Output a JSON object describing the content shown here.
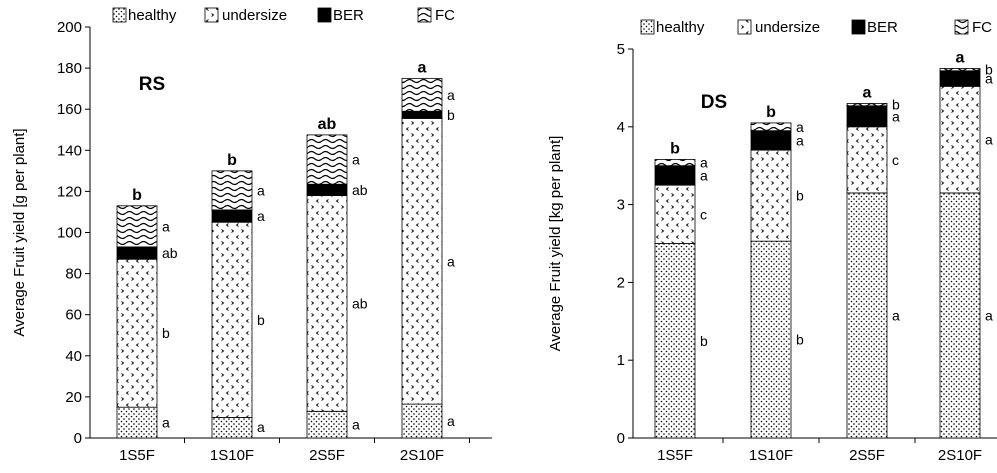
{
  "chart_data": [
    {
      "type": "bar",
      "stacked": true,
      "title": "RS",
      "ylabel": "Average Fruit yield [g per plant]",
      "xlabel": "",
      "ylim": [
        0,
        200
      ],
      "yticks": [
        "0",
        "20",
        "40",
        "60",
        "80",
        "100",
        "120",
        "140",
        "160",
        "180",
        "200"
      ],
      "categories": [
        "1S5F",
        "1S10F",
        "2S5F",
        "2S10F"
      ],
      "legend_position": "top",
      "series": [
        {
          "name": "healthy",
          "pattern": "dots",
          "values": [
            15,
            10,
            13,
            16.5
          ],
          "letters": [
            "a",
            "a",
            "a",
            "a"
          ]
        },
        {
          "name": "undersize",
          "pattern": "arrows",
          "values": [
            72,
            95,
            105,
            139
          ],
          "letters": [
            "b",
            "b",
            "ab",
            "a"
          ]
        },
        {
          "name": "BER",
          "pattern": "solid",
          "values": [
            6,
            6,
            5.5,
            3.5
          ],
          "letters": [
            "ab",
            "a",
            "ab",
            "b"
          ]
        },
        {
          "name": "FC",
          "pattern": "waves",
          "values": [
            20,
            19,
            24,
            16
          ],
          "letters": [
            "a",
            "a",
            "a",
            "a"
          ]
        }
      ],
      "total_letters": [
        "b",
        "b",
        "ab",
        "a"
      ]
    },
    {
      "type": "bar",
      "stacked": true,
      "title": "DS",
      "ylabel": "Average Fruit yield [kg per plant]",
      "xlabel": "",
      "ylim": [
        0,
        5
      ],
      "yticks": [
        "0",
        "1",
        "2",
        "3",
        "4",
        "5"
      ],
      "categories": [
        "1S5F",
        "1S10F",
        "2S5F",
        "2S10F"
      ],
      "legend_position": "top",
      "series": [
        {
          "name": "healthy",
          "pattern": "dots",
          "values": [
            2.5,
            2.53,
            3.15,
            3.15
          ],
          "letters": [
            "b",
            "b",
            "a",
            "a"
          ]
        },
        {
          "name": "undersize",
          "pattern": "arrows",
          "values": [
            0.75,
            1.17,
            0.85,
            1.37
          ],
          "letters": [
            "c",
            "b",
            "c",
            "a"
          ]
        },
        {
          "name": "BER",
          "pattern": "solid",
          "values": [
            0.25,
            0.25,
            0.27,
            0.2
          ],
          "letters": [
            "a",
            "a",
            "a",
            "a"
          ]
        },
        {
          "name": "FC",
          "pattern": "waves",
          "values": [
            0.08,
            0.1,
            0.03,
            0.03
          ],
          "letters": [
            "a",
            "a",
            "b",
            "b"
          ]
        }
      ],
      "total_letters": [
        "b",
        "b",
        "a",
        "a"
      ]
    }
  ]
}
